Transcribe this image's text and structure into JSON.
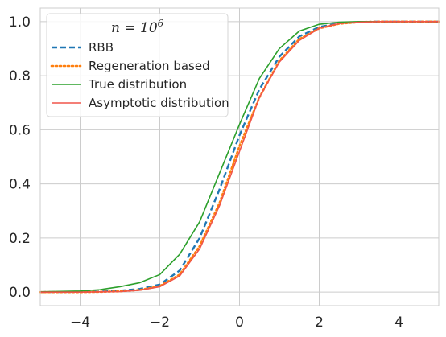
{
  "chart_data": {
    "type": "line",
    "title": "",
    "xlabel": "",
    "ylabel": "",
    "xlim": [
      -5,
      5
    ],
    "ylim": [
      -0.05,
      1.05
    ],
    "grid": true,
    "legend_position": "top-left",
    "legend_title": "n = 10^6",
    "xticks": [
      -4,
      -2,
      0,
      2,
      4
    ],
    "xtick_labels": [
      "−4",
      "−2",
      "0",
      "2",
      "4"
    ],
    "yticks": [
      0.0,
      0.2,
      0.4,
      0.6,
      0.8,
      1.0
    ],
    "ytick_labels": [
      "0.0",
      "0.2",
      "0.4",
      "0.6",
      "0.8",
      "1.0"
    ],
    "x": [
      -5,
      -4,
      -3.5,
      -3,
      -2.5,
      -2,
      -1.5,
      -1,
      -0.5,
      0,
      0.5,
      1,
      1.5,
      2,
      2.5,
      3,
      3.5,
      4,
      5
    ],
    "series": [
      {
        "name": "RBB",
        "color": "#1f77b4",
        "style": "dashed",
        "values": [
          0.0,
          0.001,
          0.002,
          0.005,
          0.012,
          0.028,
          0.08,
          0.2,
          0.38,
          0.58,
          0.75,
          0.87,
          0.945,
          0.98,
          0.994,
          0.998,
          1.0,
          1.0,
          1.0
        ]
      },
      {
        "name": "Regeneration based",
        "color": "#ff7f0e",
        "style": "dotted",
        "values": [
          0.0,
          0.0,
          0.001,
          0.003,
          0.008,
          0.022,
          0.065,
          0.17,
          0.33,
          0.54,
          0.72,
          0.855,
          0.935,
          0.975,
          0.992,
          0.998,
          1.0,
          1.0,
          1.0
        ]
      },
      {
        "name": "True distribution",
        "color": "#2ca02c",
        "style": "solid",
        "values": [
          0.001,
          0.004,
          0.009,
          0.02,
          0.035,
          0.065,
          0.14,
          0.26,
          0.44,
          0.62,
          0.79,
          0.9,
          0.965,
          0.99,
          0.998,
          1.0,
          1.0,
          1.0,
          1.0
        ]
      },
      {
        "name": "Asymptotic distribution",
        "color": "#f0554a",
        "style": "solid",
        "values": [
          0.0,
          0.0,
          0.001,
          0.002,
          0.007,
          0.02,
          0.06,
          0.16,
          0.32,
          0.52,
          0.72,
          0.85,
          0.93,
          0.975,
          0.993,
          0.998,
          1.0,
          1.0,
          1.0
        ]
      }
    ]
  }
}
